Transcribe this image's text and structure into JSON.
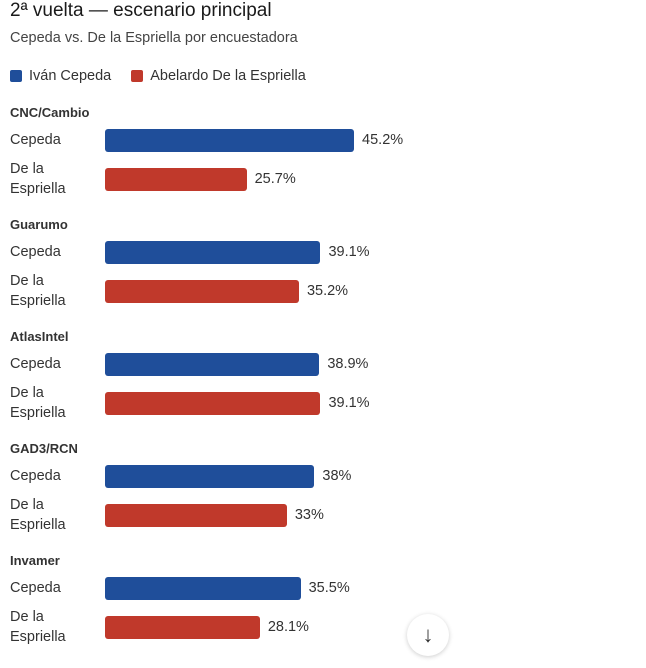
{
  "chart_data": {
    "type": "bar",
    "orientation": "horizontal",
    "title": "2ª vuelta — escenario principal",
    "subtitle": "Cepeda vs. De la Espriella por encuestadora",
    "legend": [
      {
        "name": "Iván Cepeda",
        "color": "#1f4e9a"
      },
      {
        "name": "Abelardo De la Espriella",
        "color": "#c0392b"
      }
    ],
    "legend_position": "top-left",
    "row_labels": [
      "Cepeda",
      "De la Espriella"
    ],
    "value_suffix": "%",
    "groups": [
      {
        "name": "CNC/Cambio",
        "values": [
          45.2,
          25.7
        ],
        "labels": [
          "45.2%",
          "25.7%"
        ]
      },
      {
        "name": "Guarumo",
        "values": [
          39.1,
          35.2
        ],
        "labels": [
          "39.1%",
          "35.2%"
        ]
      },
      {
        "name": "AtlasIntel",
        "values": [
          38.9,
          39.1
        ],
        "labels": [
          "38.9%",
          "39.1%"
        ]
      },
      {
        "name": "GAD3/RCN",
        "values": [
          38,
          33
        ],
        "labels": [
          "38%",
          "33%"
        ]
      },
      {
        "name": "Invamer",
        "values": [
          35.5,
          28.1
        ],
        "labels": [
          "35.5%",
          "28.1%"
        ]
      }
    ]
  },
  "scroll_button": {
    "icon": "arrow-down-icon",
    "glyph": "↓"
  }
}
